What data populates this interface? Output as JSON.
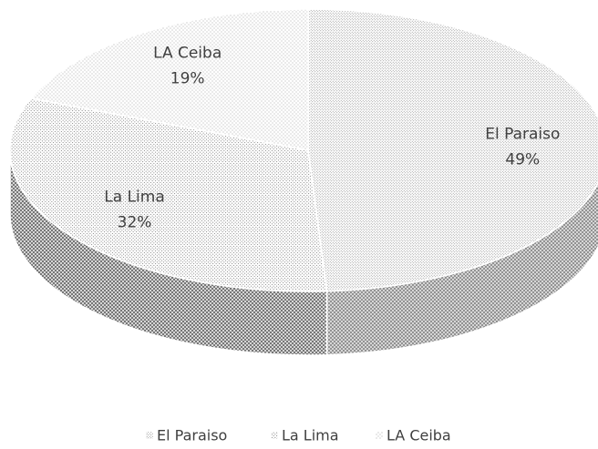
{
  "chart_data": {
    "type": "pie3d",
    "categories": [
      "El Paraiso",
      "La Lima",
      "LA Ceiba"
    ],
    "values": [
      49,
      32,
      19
    ],
    "value_labels": [
      "49%",
      "32%",
      "19%"
    ],
    "colors": [
      "#8c8c8c",
      "#6e6e6e",
      "#9a9a9a"
    ],
    "legend": "bottom"
  }
}
